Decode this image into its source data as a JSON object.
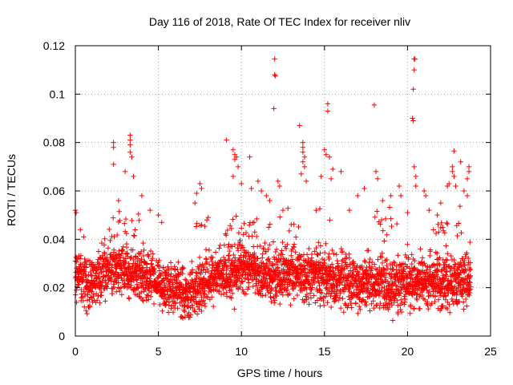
{
  "chart_data": {
    "type": "scatter",
    "title": "Day 116 of 2018, Rate Of TEC Index for receiver nliv",
    "xlabel": "GPS time / hours",
    "ylabel": "ROTI / TECUs",
    "xlim": [
      0,
      25
    ],
    "ylim": [
      0,
      0.12
    ],
    "x_ticks": [
      0,
      5,
      10,
      15,
      20,
      25
    ],
    "y_ticks": [
      0,
      0.02,
      0.04,
      0.06,
      0.08,
      0.1,
      0.12
    ],
    "x_tick_labels": [
      "0",
      "5",
      "10",
      "15",
      "20",
      "25"
    ],
    "y_tick_labels": [
      "0",
      "0.02",
      "0.04",
      "0.06",
      "0.08",
      "0.1",
      "0.12"
    ],
    "grid": true,
    "marker": "+",
    "color": "#ff0000",
    "sample_interval_hours": 0.04,
    "series": [
      {
        "name": "ROTI",
        "x_start": 0.0,
        "x_end": 23.8,
        "baseline": [
          [
            0.0,
            0.025
          ],
          [
            0.5,
            0.024
          ],
          [
            1.0,
            0.022
          ],
          [
            1.5,
            0.024
          ],
          [
            2.0,
            0.028
          ],
          [
            2.5,
            0.026
          ],
          [
            3.0,
            0.028
          ],
          [
            3.5,
            0.026
          ],
          [
            4.0,
            0.025
          ],
          [
            4.5,
            0.024
          ],
          [
            5.0,
            0.022
          ],
          [
            5.5,
            0.021
          ],
          [
            6.0,
            0.019
          ],
          [
            6.5,
            0.018
          ],
          [
            7.0,
            0.018
          ],
          [
            7.5,
            0.021
          ],
          [
            8.0,
            0.023
          ],
          [
            8.5,
            0.024
          ],
          [
            9.0,
            0.025
          ],
          [
            9.5,
            0.027
          ],
          [
            10.0,
            0.028
          ],
          [
            10.5,
            0.028
          ],
          [
            11.0,
            0.027
          ],
          [
            11.5,
            0.026
          ],
          [
            12.0,
            0.025
          ],
          [
            12.5,
            0.025
          ],
          [
            13.0,
            0.024
          ],
          [
            13.5,
            0.025
          ],
          [
            14.0,
            0.024
          ],
          [
            14.5,
            0.024
          ],
          [
            15.0,
            0.025
          ],
          [
            15.5,
            0.024
          ],
          [
            16.0,
            0.023
          ],
          [
            16.5,
            0.023
          ],
          [
            17.0,
            0.022
          ],
          [
            17.5,
            0.022
          ],
          [
            18.0,
            0.022
          ],
          [
            18.5,
            0.022
          ],
          [
            19.0,
            0.021
          ],
          [
            19.5,
            0.021
          ],
          [
            20.0,
            0.022
          ],
          [
            20.5,
            0.023
          ],
          [
            21.0,
            0.023
          ],
          [
            21.5,
            0.023
          ],
          [
            22.0,
            0.023
          ],
          [
            22.5,
            0.022
          ],
          [
            23.0,
            0.022
          ],
          [
            23.5,
            0.022
          ],
          [
            23.8,
            0.022
          ]
        ],
        "spread": 0.0075,
        "elevated_band": {
          "value": 0.045,
          "fraction": 0.3,
          "ranges": [
            [
              2.0,
              4.0
            ],
            [
              7.0,
              8.0
            ],
            [
              9.0,
              13.5
            ],
            [
              14.5,
              15.5
            ],
            [
              18.0,
              19.5
            ],
            [
              21.0,
              23.8
            ]
          ]
        },
        "peaks": [
          [
            0.0,
            0.052
          ],
          [
            0.05,
            0.051
          ],
          [
            0.3,
            0.044
          ],
          [
            0.5,
            0.041
          ],
          [
            2.3,
            0.08
          ],
          [
            2.3,
            0.078
          ],
          [
            2.3,
            0.071
          ],
          [
            2.6,
            0.056
          ],
          [
            3.0,
            0.068
          ],
          [
            3.3,
            0.083
          ],
          [
            3.3,
            0.081
          ],
          [
            3.3,
            0.079
          ],
          [
            3.3,
            0.076
          ],
          [
            3.4,
            0.074
          ],
          [
            3.5,
            0.066
          ],
          [
            4.0,
            0.058
          ],
          [
            4.5,
            0.052
          ],
          [
            5.0,
            0.05
          ],
          [
            5.2,
            0.047
          ],
          [
            7.2,
            0.055
          ],
          [
            7.3,
            0.059
          ],
          [
            7.5,
            0.063
          ],
          [
            7.6,
            0.061
          ],
          [
            8.0,
            0.049
          ],
          [
            9.1,
            0.081
          ],
          [
            9.5,
            0.077
          ],
          [
            9.6,
            0.075
          ],
          [
            9.7,
            0.074
          ],
          [
            9.6,
            0.073
          ],
          [
            9.8,
            0.07
          ],
          [
            9.5,
            0.066
          ],
          [
            10.0,
            0.063
          ],
          [
            10.5,
            0.074
          ],
          [
            10.6,
            0.061
          ],
          [
            11.0,
            0.064
          ],
          [
            11.2,
            0.06
          ],
          [
            11.5,
            0.058
          ],
          [
            11.7,
            0.056
          ],
          [
            12.0,
            0.1145
          ],
          [
            12.0,
            0.108
          ],
          [
            12.05,
            0.1075
          ],
          [
            11.95,
            0.094
          ],
          [
            12.2,
            0.064
          ],
          [
            12.3,
            0.062
          ],
          [
            12.5,
            0.052
          ],
          [
            13.5,
            0.087
          ],
          [
            13.7,
            0.08
          ],
          [
            13.7,
            0.078
          ],
          [
            13.7,
            0.076
          ],
          [
            13.8,
            0.074
          ],
          [
            13.7,
            0.072
          ],
          [
            13.8,
            0.07
          ],
          [
            13.6,
            0.067
          ],
          [
            13.9,
            0.064
          ],
          [
            14.5,
            0.052
          ],
          [
            14.8,
            0.066
          ],
          [
            15.0,
            0.077
          ],
          [
            15.1,
            0.075
          ],
          [
            15.2,
            0.096
          ],
          [
            15.2,
            0.093
          ],
          [
            15.3,
            0.074
          ],
          [
            15.5,
            0.069
          ],
          [
            15.4,
            0.065
          ],
          [
            16.0,
            0.068
          ],
          [
            16.5,
            0.052
          ],
          [
            17.0,
            0.058
          ],
          [
            17.4,
            0.061
          ],
          [
            18.0,
            0.0955
          ],
          [
            18.1,
            0.068
          ],
          [
            18.2,
            0.065
          ],
          [
            18.5,
            0.056
          ],
          [
            19.0,
            0.058
          ],
          [
            19.5,
            0.062
          ],
          [
            19.6,
            0.058
          ],
          [
            20.0,
            0.051
          ],
          [
            20.4,
            0.1145
          ],
          [
            20.45,
            0.1145
          ],
          [
            20.4,
            0.11
          ],
          [
            20.35,
            0.102
          ],
          [
            20.3,
            0.09
          ],
          [
            20.35,
            0.089
          ],
          [
            20.4,
            0.07
          ],
          [
            20.5,
            0.066
          ],
          [
            20.5,
            0.062
          ],
          [
            21.0,
            0.06
          ],
          [
            21.1,
            0.058
          ],
          [
            21.3,
            0.052
          ],
          [
            21.8,
            0.05
          ],
          [
            22.0,
            0.055
          ],
          [
            22.4,
            0.062
          ],
          [
            22.5,
            0.063
          ],
          [
            22.7,
            0.07
          ],
          [
            22.8,
            0.066
          ],
          [
            22.7,
            0.068
          ],
          [
            22.9,
            0.062
          ],
          [
            22.8,
            0.0765
          ],
          [
            23.2,
            0.072
          ],
          [
            23.4,
            0.06
          ],
          [
            23.6,
            0.065
          ],
          [
            23.7,
            0.07
          ],
          [
            23.7,
            0.068
          ],
          [
            23.6,
            0.058
          ]
        ]
      }
    ]
  }
}
